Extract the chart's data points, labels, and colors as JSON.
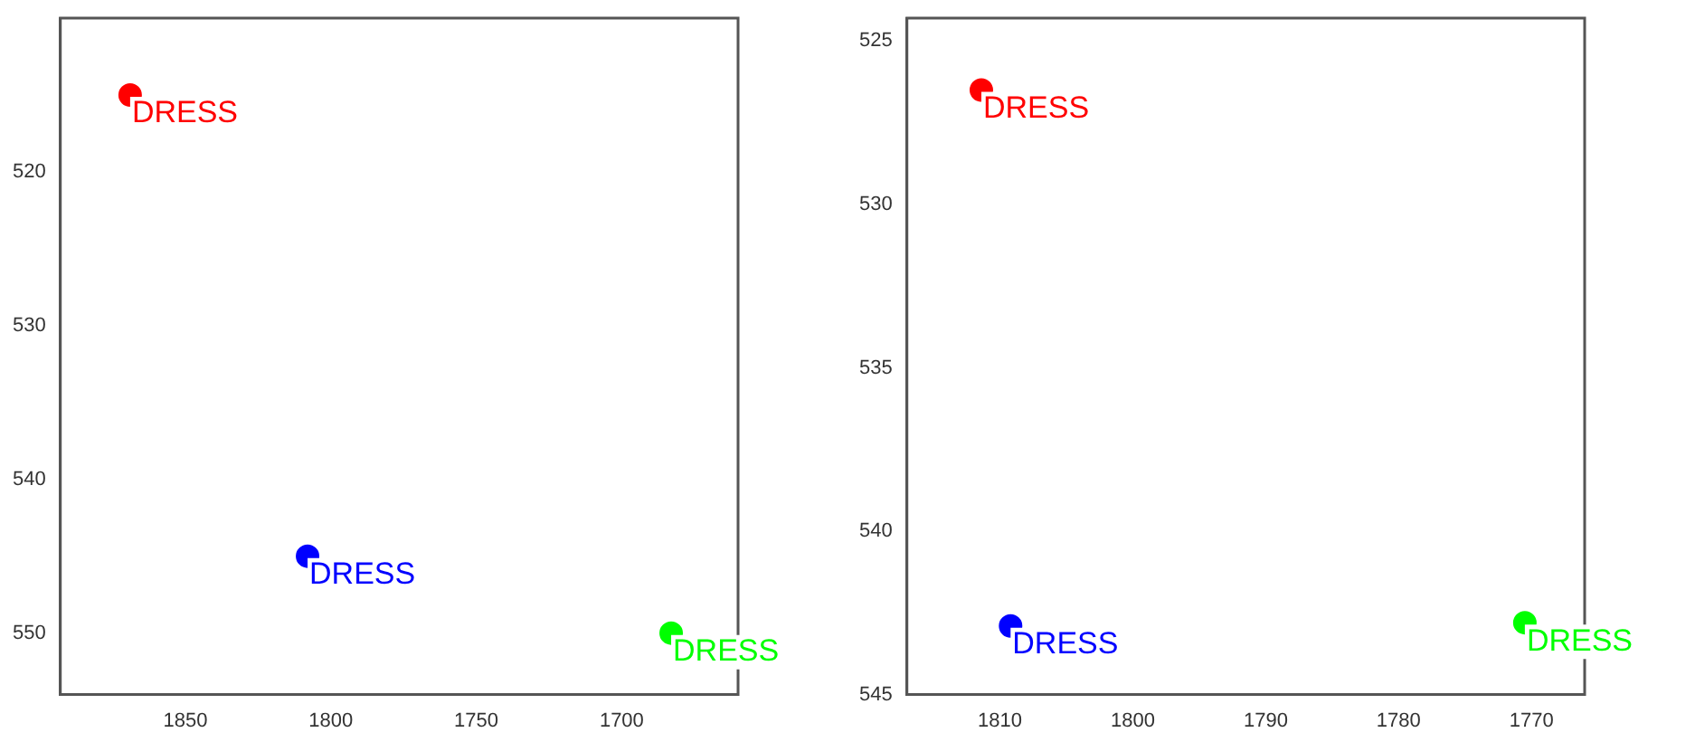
{
  "chart_data": [
    {
      "type": "scatter",
      "xlim": [
        1893,
        1660
      ],
      "xticks": [
        1850,
        1800,
        1750,
        1700
      ],
      "ylim": [
        554,
        510
      ],
      "yticks": [
        520,
        530,
        540,
        550
      ],
      "marker": "circle",
      "grid": false,
      "legend": false,
      "series": [
        {
          "color": "#ff0000",
          "x": [
            1869
          ],
          "values": [
            515
          ]
        },
        {
          "color": "#0000ff",
          "x": [
            1808
          ],
          "values": [
            545
          ]
        },
        {
          "color": "#00ff00",
          "x": [
            1683
          ],
          "values": [
            550
          ]
        }
      ],
      "annotations": [
        {
          "text": "DRESS",
          "x": 1869,
          "y": 515
        },
        {
          "text": "DRESS",
          "x": 1808,
          "y": 545
        },
        {
          "text": "DRESS",
          "x": 1683,
          "y": 550
        }
      ]
    },
    {
      "type": "scatter",
      "xlim": [
        1817,
        1766
      ],
      "xticks": [
        1810,
        1800,
        1790,
        1780,
        1770
      ],
      "ylim": [
        545,
        524.3
      ],
      "yticks": [
        525,
        530,
        535,
        540,
        545
      ],
      "marker": "circle",
      "grid": false,
      "legend": false,
      "series": [
        {
          "color": "#ff0000",
          "x": [
            1811.4
          ],
          "values": [
            526.5
          ]
        },
        {
          "color": "#0000ff",
          "x": [
            1809.2
          ],
          "values": [
            542.9
          ]
        },
        {
          "color": "#00ff00",
          "x": [
            1770.5
          ],
          "values": [
            542.8
          ]
        }
      ],
      "annotations": [
        {
          "text": "DRESS",
          "x": 1811.4,
          "y": 526.5
        },
        {
          "text": "DRESS",
          "x": 1809.2,
          "y": 542.9
        },
        {
          "text": "DRESS",
          "x": 1770.5,
          "y": 542.8
        }
      ]
    }
  ]
}
